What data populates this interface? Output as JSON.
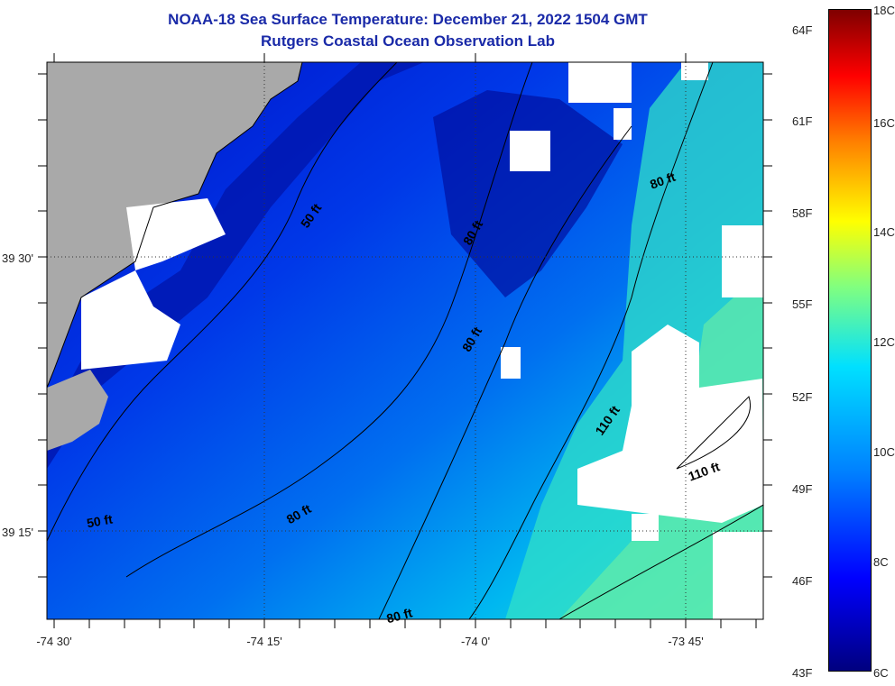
{
  "title": {
    "line1": "NOAA-18 Sea Surface Temperature:  December 21, 2022 1504 GMT",
    "line2": "Rutgers Coastal Ocean Observation Lab"
  },
  "axes": {
    "latitude_labels": [
      "39 30'",
      "39 15'"
    ],
    "longitude_labels": [
      "-74 30'",
      "-74 15'",
      "-74 0'",
      "-73 45'"
    ]
  },
  "contours": {
    "labels": [
      "50 ft",
      "50 ft",
      "80 ft",
      "80 ft",
      "80 ft",
      "80 ft",
      "80 ft",
      "110 ft",
      "110 ft"
    ]
  },
  "colorbar": {
    "fahrenheit": [
      "64F",
      "61F",
      "58F",
      "55F",
      "52F",
      "49F",
      "46F",
      "43F"
    ],
    "celsius": [
      "18C",
      "16C",
      "14C",
      "12C",
      "10C",
      "8C",
      "6C"
    ],
    "scale_min_c": 6,
    "scale_max_c": 18
  },
  "colors": {
    "land": "#a9a9a9",
    "cloud_no_data": "#ffffff",
    "title": "#1a2aa8",
    "coldest": "#00007f",
    "warmest": "#7f0000"
  }
}
